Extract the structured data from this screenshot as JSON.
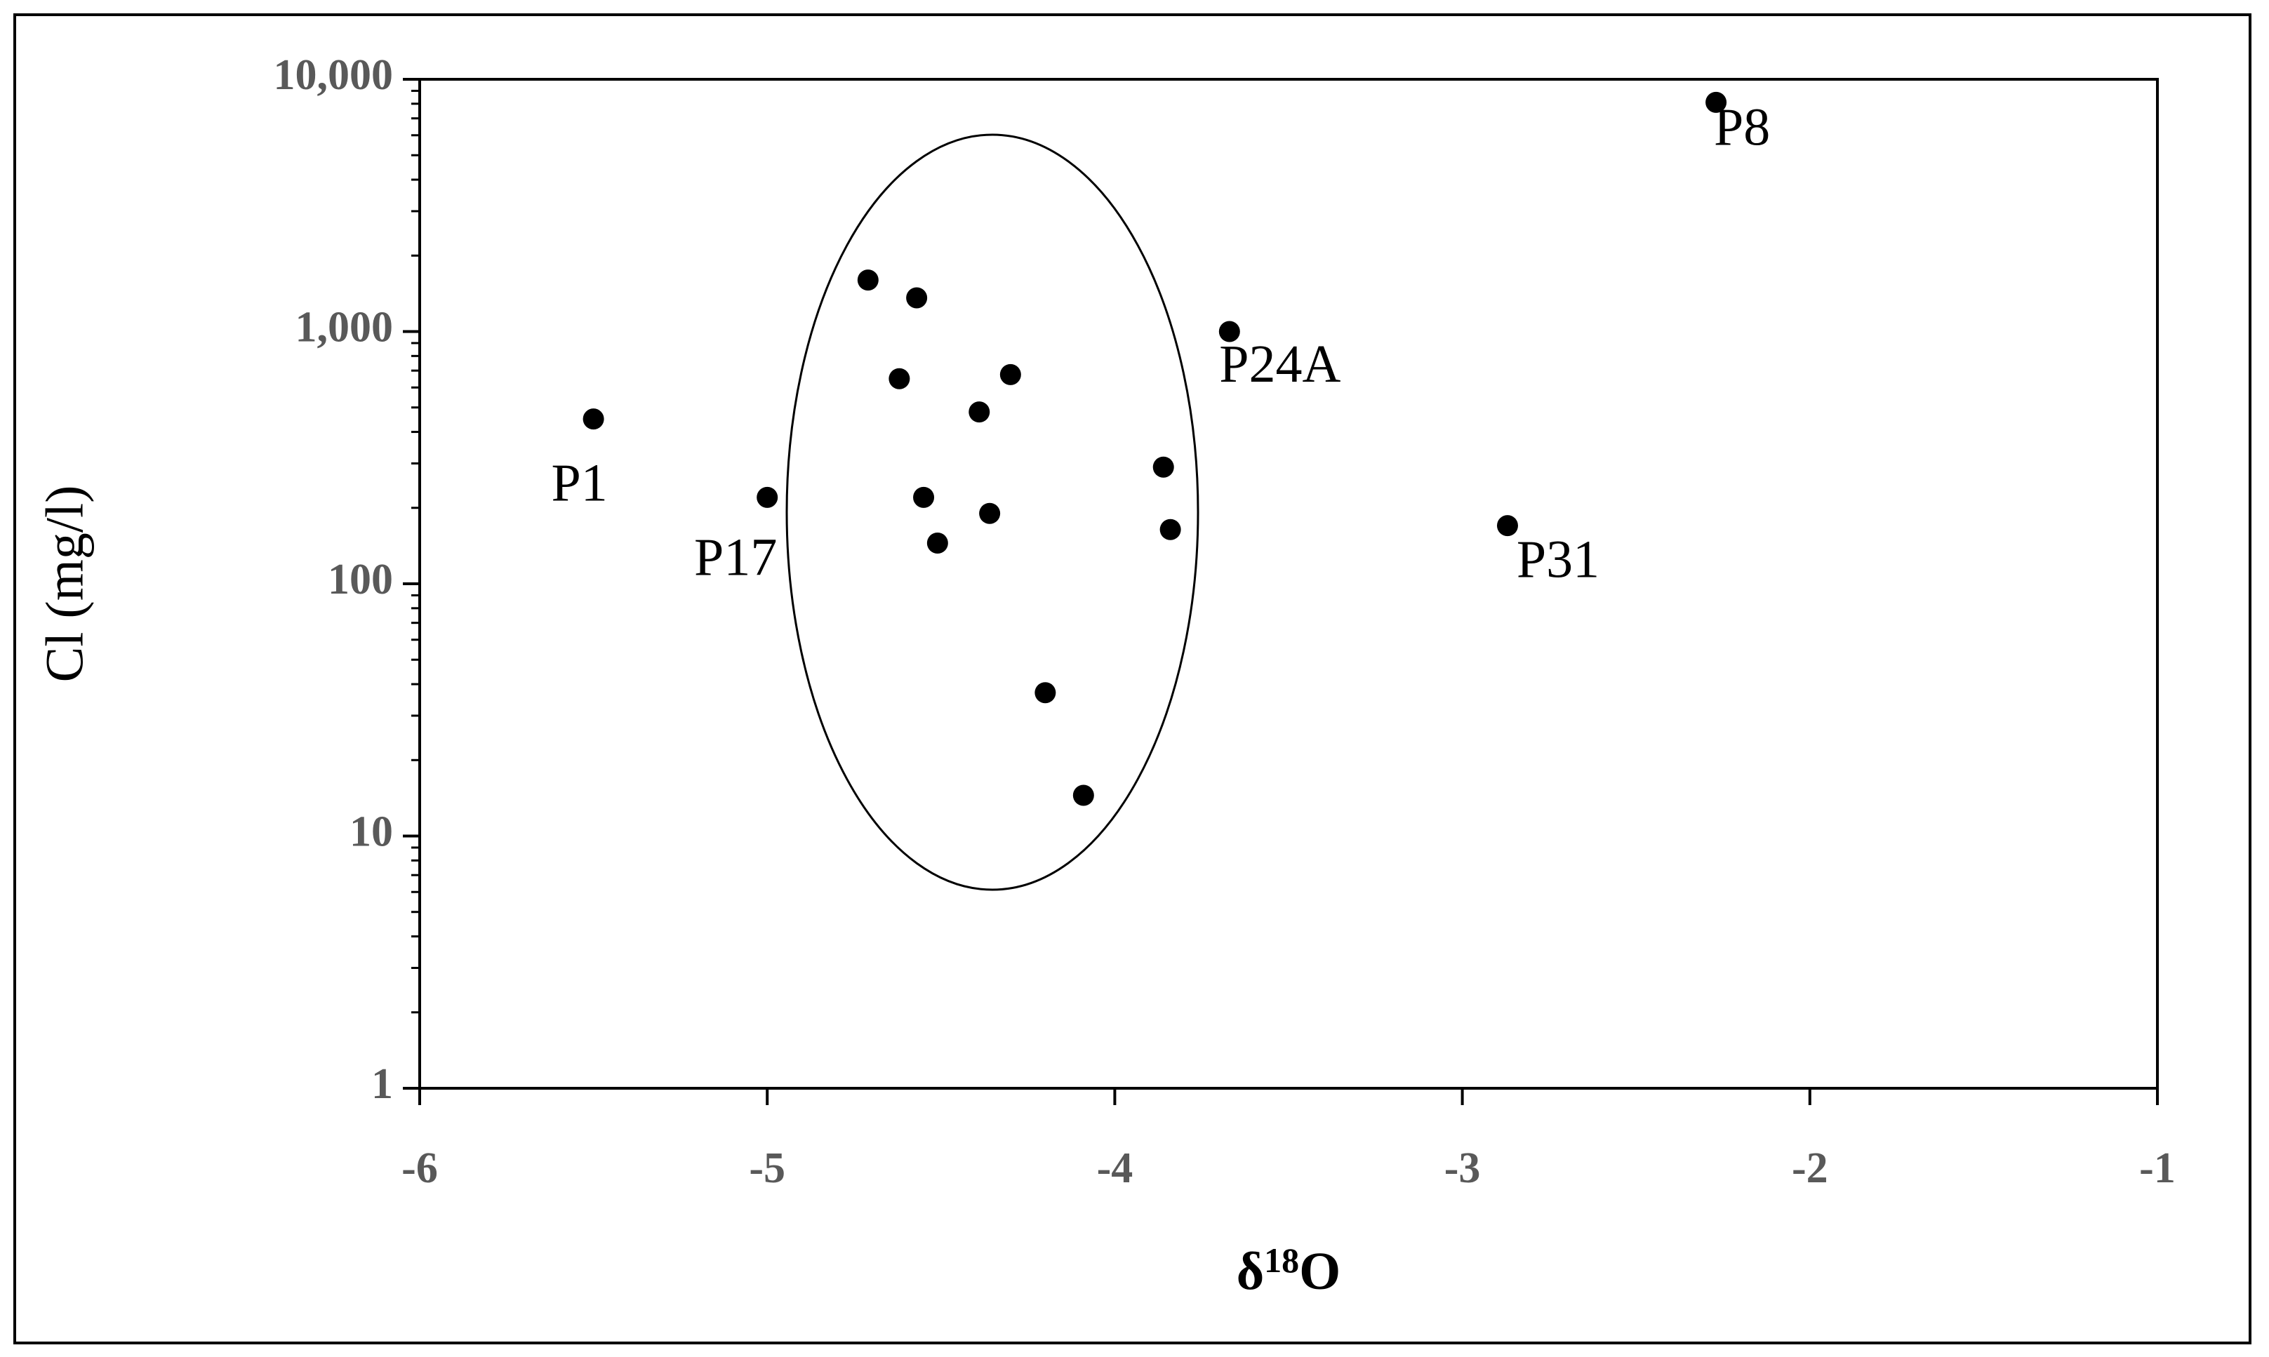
{
  "chart_data": {
    "type": "scatter",
    "xlabel_parts": [
      "δ",
      "18",
      "O"
    ],
    "ylabel": "Cl (mg/l)",
    "x": [
      -5.5,
      -5.0,
      -4.71,
      -4.57,
      -4.62,
      -4.3,
      -4.39,
      -4.55,
      -4.36,
      -4.51,
      -4.2,
      -4.09,
      -3.86,
      -3.84,
      -3.67,
      -2.87,
      -2.27
    ],
    "series": [
      {
        "color": "#000000",
        "values": [
          450,
          220,
          1600,
          1360,
          650,
          675,
          480,
          220,
          190,
          145,
          37,
          14.5,
          290,
          164,
          1000,
          170,
          8100
        ],
        "labels": [
          "P1",
          "P17",
          null,
          null,
          null,
          null,
          null,
          null,
          null,
          null,
          null,
          null,
          null,
          null,
          "P24A",
          "P31",
          "P8"
        ]
      }
    ],
    "xlim": [
      -6,
      -1
    ],
    "xticks": [
      -6,
      -5,
      -4,
      -3,
      -2,
      -1
    ],
    "ylim": [
      1,
      10000
    ],
    "yticks": [
      1,
      10,
      100,
      {
        "value": 1000,
        "label": "1,000"
      },
      {
        "value": 10000,
        "label": "10,000"
      }
    ],
    "yscale": "log"
  }
}
